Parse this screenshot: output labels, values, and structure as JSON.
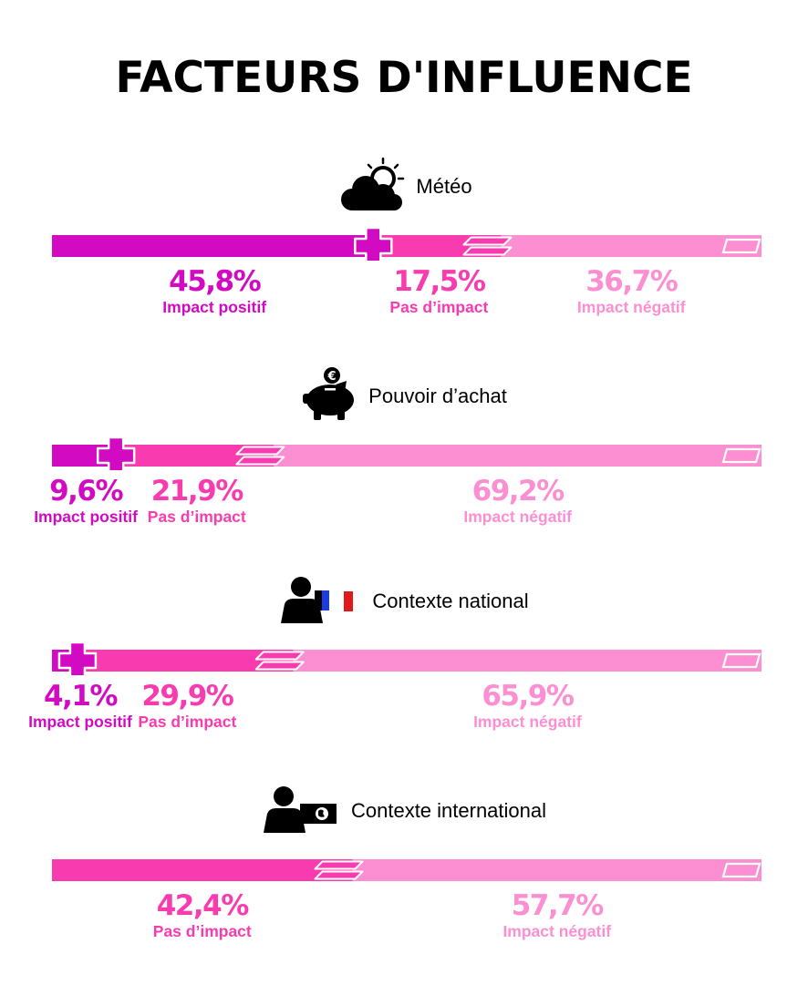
{
  "title": "FACTEURS D'INFLUENCE",
  "colors": {
    "positive": "#d20ac2",
    "none": "#f83cb0",
    "negative": "#fb8fd2",
    "text": "#000000"
  },
  "chart_data": [
    {
      "type": "bar",
      "title": "Météo",
      "icon": "sun-cloud-icon",
      "categories": [
        "Impact positif",
        "Pas d’impact",
        "Impact négatif"
      ],
      "values": [
        45.8,
        17.5,
        36.7
      ],
      "labels": [
        "45,8%",
        "17,5%",
        "36,7%"
      ]
    },
    {
      "type": "bar",
      "title": "Pouvoir d’achat",
      "icon": "piggy-bank-icon",
      "categories": [
        "Impact positif",
        "Pas d’impact",
        "Impact négatif"
      ],
      "values": [
        9.6,
        21.9,
        69.2
      ],
      "labels": [
        "9,6%",
        "21,9%",
        "69,2%"
      ]
    },
    {
      "type": "bar",
      "title": "Contexte national",
      "icon": "person-france-flag-icon",
      "categories": [
        "Impact positif",
        "Pas d’impact",
        "Impact négatif"
      ],
      "values": [
        4.1,
        29.9,
        65.9
      ],
      "labels": [
        "4,1%",
        "29,9%",
        "65,9%"
      ]
    },
    {
      "type": "bar",
      "title": "Contexte international",
      "icon": "person-globe-flag-icon",
      "categories": [
        "Pas d’impact",
        "Impact négatif"
      ],
      "values": [
        42.4,
        57.7
      ],
      "labels": [
        "42,4%",
        "57,7%"
      ]
    }
  ]
}
